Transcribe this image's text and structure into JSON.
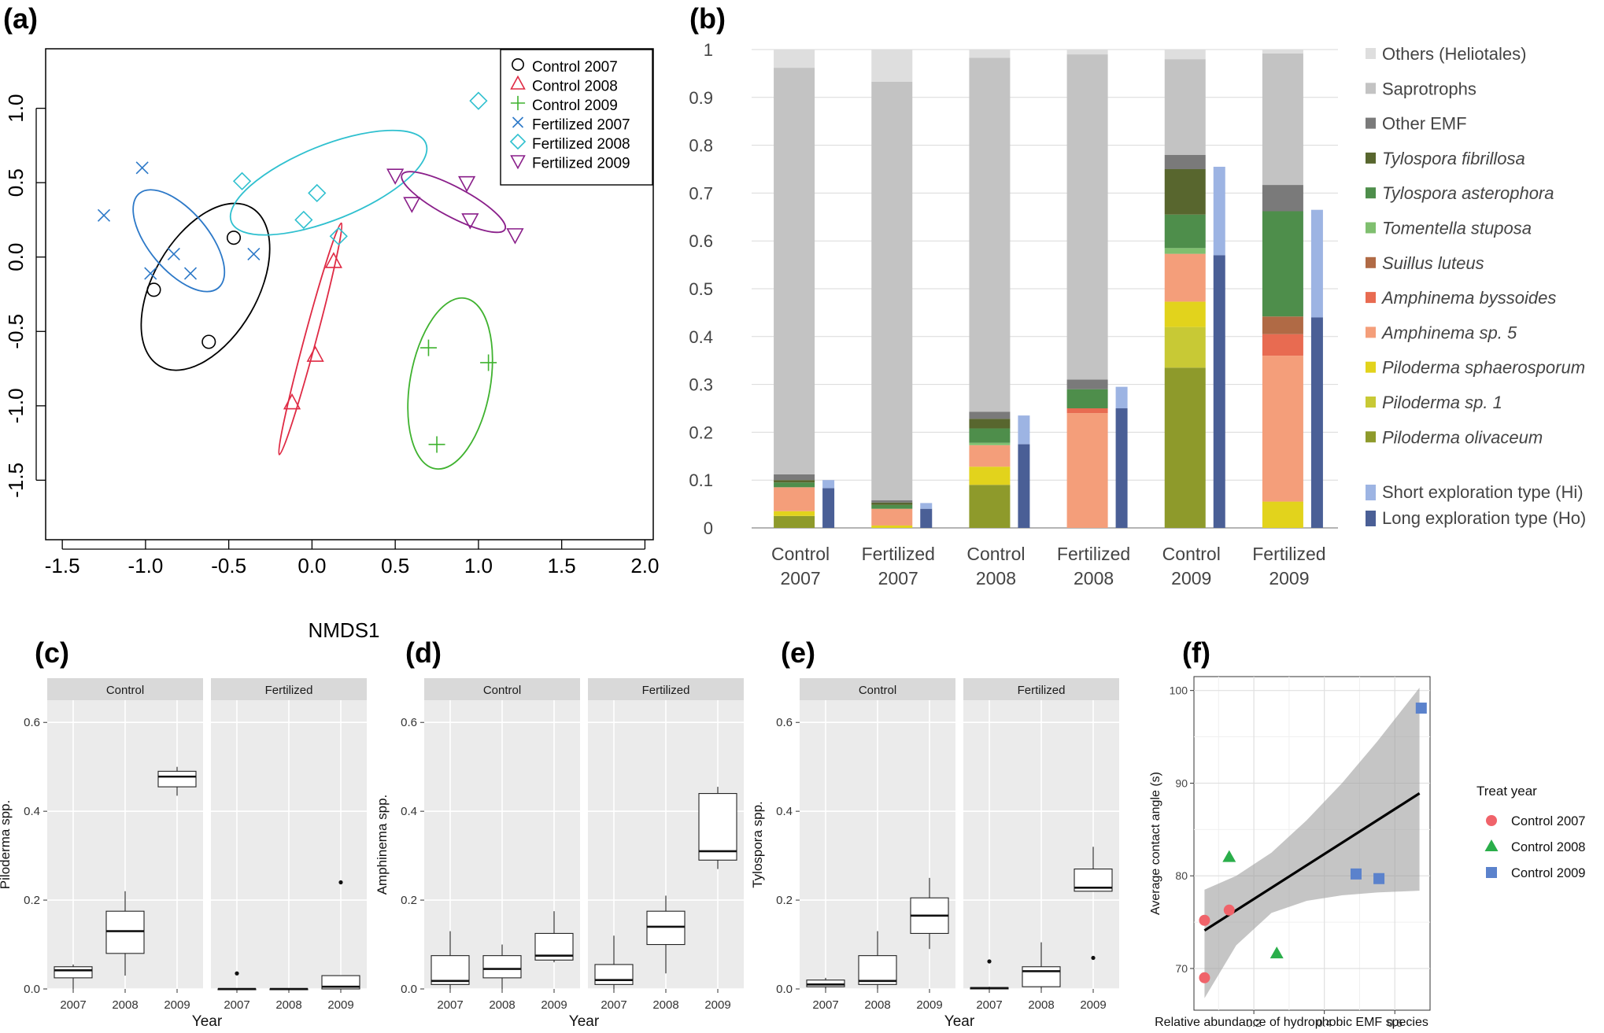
{
  "panels": {
    "a": {
      "letter": "(a)"
    },
    "b": {
      "letter": "(b)"
    },
    "c": {
      "letter": "(c)"
    },
    "d": {
      "letter": "(d)"
    },
    "e": {
      "letter": "(e)"
    },
    "f": {
      "letter": "(f)"
    }
  },
  "colors": {
    "control2007": "#000000",
    "control2008": "#df2a44",
    "control2009": "#3fb22f",
    "fert2007": "#2d79c8",
    "fert2008": "#2fc0cf",
    "fert2009": "#8a1f8a",
    "f_c2007": "#f0636a",
    "f_c2008": "#2aae4a",
    "f_c2009": "#5b82cc"
  },
  "chart_data": [
    {
      "id": "a",
      "type": "scatter",
      "title": "",
      "xlabel": "NMDS1",
      "ylabel": "",
      "xlim": [
        -1.6,
        2.05
      ],
      "ylim": [
        -1.9,
        1.4
      ],
      "xticks": [
        "-1.5",
        "-1.0",
        "-0.5",
        "0.0",
        "0.5",
        "1.0",
        "1.5",
        "2.0"
      ],
      "yticks": [
        "-1.5",
        "-1.0",
        "-0.5",
        "0.0",
        "0.5",
        "1.0"
      ],
      "legend_position": "top-right",
      "series": [
        {
          "name": "Control 2007",
          "marker": "circle",
          "color_key": "control2007",
          "points": [
            [
              -0.95,
              -0.22
            ],
            [
              -0.62,
              -0.57
            ],
            [
              -0.47,
              0.13
            ]
          ],
          "ellipse": {
            "cx": -0.64,
            "cy": -0.2,
            "rx": 0.55,
            "ry": 0.35,
            "angle": 60
          }
        },
        {
          "name": "Control 2008",
          "marker": "triangle",
          "color_key": "control2008",
          "points": [
            [
              -0.12,
              -0.98
            ],
            [
              0.02,
              -0.66
            ],
            [
              0.13,
              -0.03
            ]
          ],
          "ellipse": {
            "cx": -0.01,
            "cy": -0.55,
            "rx": 0.72,
            "ry": 0.04,
            "angle": 75
          }
        },
        {
          "name": "Control 2009",
          "marker": "plus",
          "color_key": "control2009",
          "points": [
            [
              0.7,
              -0.61
            ],
            [
              1.06,
              -0.71
            ],
            [
              0.75,
              -1.26
            ]
          ],
          "ellipse": {
            "cx": 0.83,
            "cy": -0.85,
            "rx": 0.52,
            "ry": 0.27,
            "angle": 80
          }
        },
        {
          "name": "Fertilized 2007",
          "marker": "x",
          "color_key": "fert2007",
          "points": [
            [
              -1.25,
              0.28
            ],
            [
              -1.02,
              0.6
            ],
            [
              -0.97,
              -0.11
            ],
            [
              -0.83,
              0.02
            ],
            [
              -0.73,
              -0.11
            ],
            [
              -0.35,
              0.02
            ]
          ],
          "ellipse": {
            "cx": -0.8,
            "cy": 0.11,
            "rx": 0.37,
            "ry": 0.2,
            "angle": -50
          }
        },
        {
          "name": "Fertilized 2008",
          "marker": "diamond",
          "color_key": "fert2008",
          "points": [
            [
              -0.42,
              0.51
            ],
            [
              -0.05,
              0.25
            ],
            [
              0.03,
              0.43
            ],
            [
              0.16,
              0.14
            ],
            [
              1.0,
              1.05
            ]
          ],
          "ellipse": {
            "cx": 0.1,
            "cy": 0.5,
            "rx": 0.63,
            "ry": 0.25,
            "angle": 22
          }
        },
        {
          "name": "Fertilized 2009",
          "marker": "triangle-down",
          "color_key": "fert2009",
          "points": [
            [
              0.5,
              0.55
            ],
            [
              0.6,
              0.36
            ],
            [
              0.93,
              0.5
            ],
            [
              0.95,
              0.25
            ],
            [
              1.22,
              0.15
            ]
          ],
          "ellipse": {
            "cx": 0.85,
            "cy": 0.37,
            "rx": 0.35,
            "ry": 0.1,
            "angle": -28
          }
        }
      ]
    },
    {
      "id": "b",
      "type": "bar",
      "stacked": true,
      "categories": [
        [
          "Control",
          "2007"
        ],
        [
          "Fertilized",
          "2007"
        ],
        [
          "Control",
          "2008"
        ],
        [
          "Fertilized",
          "2008"
        ],
        [
          "Control",
          "2009"
        ],
        [
          "Fertilized",
          "2009"
        ]
      ],
      "ylim": [
        0,
        1
      ],
      "yticks": [
        "0",
        "0.1",
        "0.2",
        "0.3",
        "0.4",
        "0.5",
        "0.6",
        "0.7",
        "0.8",
        "0.9",
        "1"
      ],
      "grid": true,
      "legend_position": "right",
      "stack_series": [
        {
          "name": "Piloderma olivaceum",
          "italic": true,
          "color": "#8e9a2b",
          "values": [
            0.025,
            0.0,
            0.09,
            0.0,
            0.335,
            0.0
          ]
        },
        {
          "name": "Piloderma sp. 1",
          "italic": true,
          "color": "#c8c935",
          "values": [
            0.0,
            0.0,
            0.0,
            0.0,
            0.085,
            0.0
          ]
        },
        {
          "name": "Piloderma sphaerosporum",
          "italic": true,
          "color": "#e2d31c",
          "values": [
            0.01,
            0.005,
            0.038,
            0.0,
            0.053,
            0.055
          ]
        },
        {
          "name": "Amphinema sp. 5",
          "italic": true,
          "color": "#f49e7a",
          "values": [
            0.05,
            0.035,
            0.045,
            0.24,
            0.1,
            0.305
          ]
        },
        {
          "name": "Amphinema byssoides",
          "italic": true,
          "color": "#e86b51",
          "values": [
            0.0,
            0.0,
            0.0,
            0.01,
            0.0,
            0.045
          ]
        },
        {
          "name": "Suillus luteus",
          "italic": true,
          "color": "#b06a45",
          "values": [
            0.0,
            0.0,
            0.0,
            0.0,
            0.0,
            0.037
          ]
        },
        {
          "name": "Tomentella stuposa",
          "italic": true,
          "color": "#7fbf6f",
          "values": [
            0.0,
            0.0,
            0.005,
            0.0,
            0.012,
            0.0
          ]
        },
        {
          "name": "Tylospora asterophora",
          "italic": true,
          "color": "#4e8e4b",
          "values": [
            0.01,
            0.008,
            0.03,
            0.04,
            0.07,
            0.22
          ]
        },
        {
          "name": "Tylospora fibrillosa",
          "italic": true,
          "color": "#58662e",
          "values": [
            0.005,
            0.005,
            0.02,
            0.0,
            0.095,
            0.0
          ]
        },
        {
          "name": "Other EMF",
          "italic": false,
          "color": "#7a7a7a",
          "values": [
            0.012,
            0.005,
            0.015,
            0.02,
            0.03,
            0.055
          ]
        },
        {
          "name": "Saprotrophs",
          "italic": false,
          "color": "#c3c3c3",
          "values": [
            0.85,
            0.875,
            0.74,
            0.68,
            0.2,
            0.275
          ]
        },
        {
          "name": "Others (Heliotales)",
          "italic": false,
          "color": "#dedede",
          "values": [
            0.038,
            0.067,
            0.017,
            0.01,
            0.02,
            0.008
          ]
        }
      ],
      "side_series": [
        {
          "name": "Long exploration type (Ho)",
          "color": "#4a5f96",
          "values": [
            0.083,
            0.04,
            0.175,
            0.25,
            0.57,
            0.44
          ]
        },
        {
          "name": "Short exploration type (Hi)",
          "color": "#9db4e3",
          "values": [
            0.017,
            0.012,
            0.06,
            0.045,
            0.185,
            0.225
          ]
        }
      ],
      "legend_order": [
        "Others (Heliotales)",
        "Saprotrophs",
        "Other EMF",
        "Tylospora fibrillosa",
        "Tylospora asterophora",
        "Tomentella stuposa",
        "Suillus luteus",
        "Amphinema byssoides",
        "Amphinema sp. 5",
        "Piloderma sphaerosporum",
        "Piloderma sp. 1",
        "Piloderma olivaceum"
      ],
      "side_legend_order": [
        "Short exploration type (Hi)",
        "Long exploration type (Ho)"
      ]
    },
    {
      "id": "c",
      "type": "box",
      "facets": [
        "Control",
        "Fertilized"
      ],
      "xlabel": "Year",
      "ylabel": "Piloderma spp.",
      "ylim": [
        0,
        0.65
      ],
      "yticks": [
        "0.0",
        "0.2",
        "0.4",
        "0.6"
      ],
      "categories": [
        "2007",
        "2008",
        "2009"
      ],
      "boxes": [
        [
          {
            "q1": 0.025,
            "median": 0.042,
            "q3": 0.05,
            "wlo": 0.0,
            "whi": 0.055,
            "outliers": []
          },
          {
            "q1": 0.08,
            "median": 0.13,
            "q3": 0.175,
            "wlo": 0.03,
            "whi": 0.22,
            "outliers": []
          },
          {
            "q1": 0.455,
            "median": 0.478,
            "q3": 0.49,
            "wlo": 0.435,
            "whi": 0.5,
            "outliers": []
          }
        ],
        [
          {
            "q1": 0.0,
            "median": 0.0,
            "q3": 0.0,
            "wlo": 0.0,
            "whi": 0.0,
            "outliers": [
              0.035
            ]
          },
          {
            "q1": 0.0,
            "median": 0.0,
            "q3": 0.0,
            "wlo": 0.0,
            "whi": 0.0,
            "outliers": []
          },
          {
            "q1": 0.0,
            "median": 0.005,
            "q3": 0.03,
            "wlo": 0.0,
            "whi": 0.03,
            "outliers": [
              0.24
            ]
          }
        ]
      ]
    },
    {
      "id": "d",
      "type": "box",
      "facets": [
        "Control",
        "Fertilized"
      ],
      "xlabel": "Year",
      "ylabel": "Amphinema spp.",
      "ylim": [
        0,
        0.65
      ],
      "yticks": [
        "0.0",
        "0.2",
        "0.4",
        "0.6"
      ],
      "categories": [
        "2007",
        "2008",
        "2009"
      ],
      "boxes": [
        [
          {
            "q1": 0.01,
            "median": 0.018,
            "q3": 0.075,
            "wlo": 0.0,
            "whi": 0.13,
            "outliers": []
          },
          {
            "q1": 0.025,
            "median": 0.045,
            "q3": 0.075,
            "wlo": 0.0,
            "whi": 0.1,
            "outliers": []
          },
          {
            "q1": 0.065,
            "median": 0.075,
            "q3": 0.125,
            "wlo": 0.06,
            "whi": 0.175,
            "outliers": []
          }
        ],
        [
          {
            "q1": 0.01,
            "median": 0.02,
            "q3": 0.055,
            "wlo": 0.0,
            "whi": 0.12,
            "outliers": []
          },
          {
            "q1": 0.1,
            "median": 0.14,
            "q3": 0.175,
            "wlo": 0.035,
            "whi": 0.21,
            "outliers": []
          },
          {
            "q1": 0.29,
            "median": 0.31,
            "q3": 0.44,
            "wlo": 0.27,
            "whi": 0.455,
            "outliers": []
          }
        ]
      ]
    },
    {
      "id": "e",
      "type": "box",
      "facets": [
        "Control",
        "Fertilized"
      ],
      "xlabel": "Year",
      "ylabel": "Tylospora spp.",
      "ylim": [
        0,
        0.65
      ],
      "yticks": [
        "0.0",
        "0.2",
        "0.4",
        "0.6"
      ],
      "categories": [
        "2007",
        "2008",
        "2009"
      ],
      "boxes": [
        [
          {
            "q1": 0.005,
            "median": 0.01,
            "q3": 0.02,
            "wlo": 0.0,
            "whi": 0.025,
            "outliers": []
          },
          {
            "q1": 0.01,
            "median": 0.018,
            "q3": 0.075,
            "wlo": 0.0,
            "whi": 0.13,
            "outliers": []
          },
          {
            "q1": 0.125,
            "median": 0.165,
            "q3": 0.205,
            "wlo": 0.09,
            "whi": 0.25,
            "outliers": []
          }
        ],
        [
          {
            "q1": 0.0,
            "median": 0.002,
            "q3": 0.003,
            "wlo": 0.0,
            "whi": 0.005,
            "outliers": [
              0.062
            ]
          },
          {
            "q1": 0.005,
            "median": 0.04,
            "q3": 0.05,
            "wlo": 0.0,
            "whi": 0.105,
            "outliers": []
          },
          {
            "q1": 0.22,
            "median": 0.228,
            "q3": 0.27,
            "wlo": 0.22,
            "whi": 0.32,
            "outliers": [
              0.07
            ]
          }
        ]
      ]
    },
    {
      "id": "f",
      "type": "scatter",
      "xlabel": "Relative abundance of hydrophobic EMF species",
      "ylabel": "Average contact angle (s)",
      "xlim": [
        0.03,
        0.7
      ],
      "ylim": [
        65.5,
        101.5
      ],
      "xticks": [
        "0.2",
        "0.4",
        "0.6"
      ],
      "xtick_values": [
        0.2,
        0.4,
        0.6
      ],
      "yticks": [
        "70",
        "80",
        "90",
        "100"
      ],
      "ytick_values": [
        70,
        80,
        90,
        100
      ],
      "legend_title": "Treat year",
      "legend_position": "right",
      "regression": {
        "x0": 0.06,
        "y0": 74.1,
        "x1": 0.67,
        "y1": 88.9
      },
      "band_upper": [
        [
          0.06,
          78.5
        ],
        [
          0.15,
          80.0
        ],
        [
          0.25,
          82.5
        ],
        [
          0.35,
          86.0
        ],
        [
          0.45,
          90.0
        ],
        [
          0.55,
          94.5
        ],
        [
          0.67,
          100.3
        ]
      ],
      "band_lower": [
        [
          0.06,
          66.8
        ],
        [
          0.15,
          72.5
        ],
        [
          0.25,
          76.0
        ],
        [
          0.35,
          77.3
        ],
        [
          0.45,
          77.9
        ],
        [
          0.55,
          78.2
        ],
        [
          0.67,
          78.4
        ]
      ],
      "series": [
        {
          "name": "Control 2007",
          "marker": "circle",
          "color_key": "f_c2007",
          "points": [
            [
              0.06,
              75.2
            ],
            [
              0.13,
              76.3
            ],
            [
              0.06,
              69.0
            ]
          ]
        },
        {
          "name": "Control 2008",
          "marker": "triangle",
          "color_key": "f_c2008",
          "points": [
            [
              0.13,
              82.0
            ],
            [
              0.265,
              71.6
            ]
          ]
        },
        {
          "name": "Control 2009",
          "marker": "square",
          "color_key": "f_c2009",
          "points": [
            [
              0.49,
              80.2
            ],
            [
              0.555,
              79.7
            ],
            [
              0.675,
              98.1
            ]
          ]
        }
      ]
    }
  ]
}
